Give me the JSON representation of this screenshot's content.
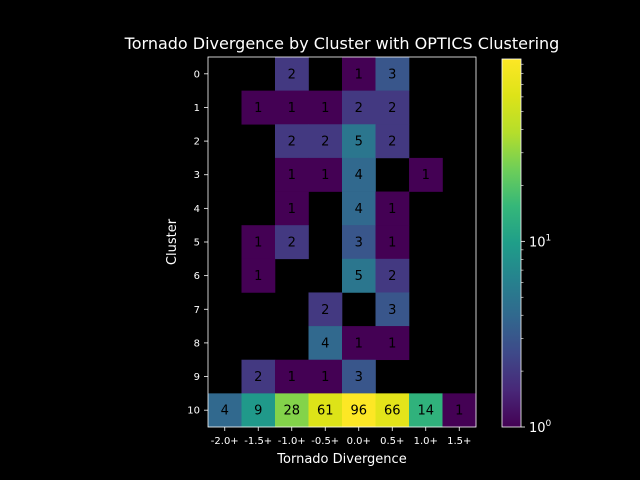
{
  "chart_data": {
    "type": "heatmap",
    "title": "Tornado Divergence by Cluster with OPTICS Clustering",
    "xlabel": "Tornado Divergence",
    "ylabel": "Cluster",
    "x_categories": [
      "-2.0+",
      "-1.5+",
      "-1.0+",
      "-0.5+",
      "0.0+",
      "0.5+",
      "1.0+",
      "1.5+"
    ],
    "y_categories": [
      "0",
      "1",
      "2",
      "3",
      "4",
      "5",
      "6",
      "7",
      "8",
      "9",
      "10"
    ],
    "values": [
      [
        null,
        null,
        2,
        null,
        1,
        3,
        null,
        null
      ],
      [
        null,
        1,
        1,
        1,
        2,
        2,
        null,
        null
      ],
      [
        null,
        null,
        2,
        2,
        5,
        2,
        null,
        null
      ],
      [
        null,
        null,
        1,
        1,
        4,
        null,
        1,
        null
      ],
      [
        null,
        null,
        1,
        null,
        4,
        1,
        null,
        null
      ],
      [
        null,
        1,
        2,
        null,
        3,
        1,
        null,
        null
      ],
      [
        null,
        1,
        null,
        null,
        5,
        2,
        null,
        null
      ],
      [
        null,
        null,
        null,
        2,
        null,
        3,
        null,
        null
      ],
      [
        null,
        null,
        null,
        4,
        1,
        1,
        null,
        null
      ],
      [
        null,
        2,
        1,
        1,
        3,
        null,
        null,
        null
      ],
      [
        4,
        9,
        28,
        61,
        96,
        66,
        14,
        1
      ]
    ],
    "colormap": "viridis",
    "color_scale": "log",
    "color_range": [
      1,
      96
    ],
    "colorbar_ticks": [
      {
        "value": 1,
        "base": "10",
        "exp": "0"
      },
      {
        "value": 10,
        "base": "10",
        "exp": "1"
      }
    ],
    "grid": false,
    "background": "#000000"
  }
}
